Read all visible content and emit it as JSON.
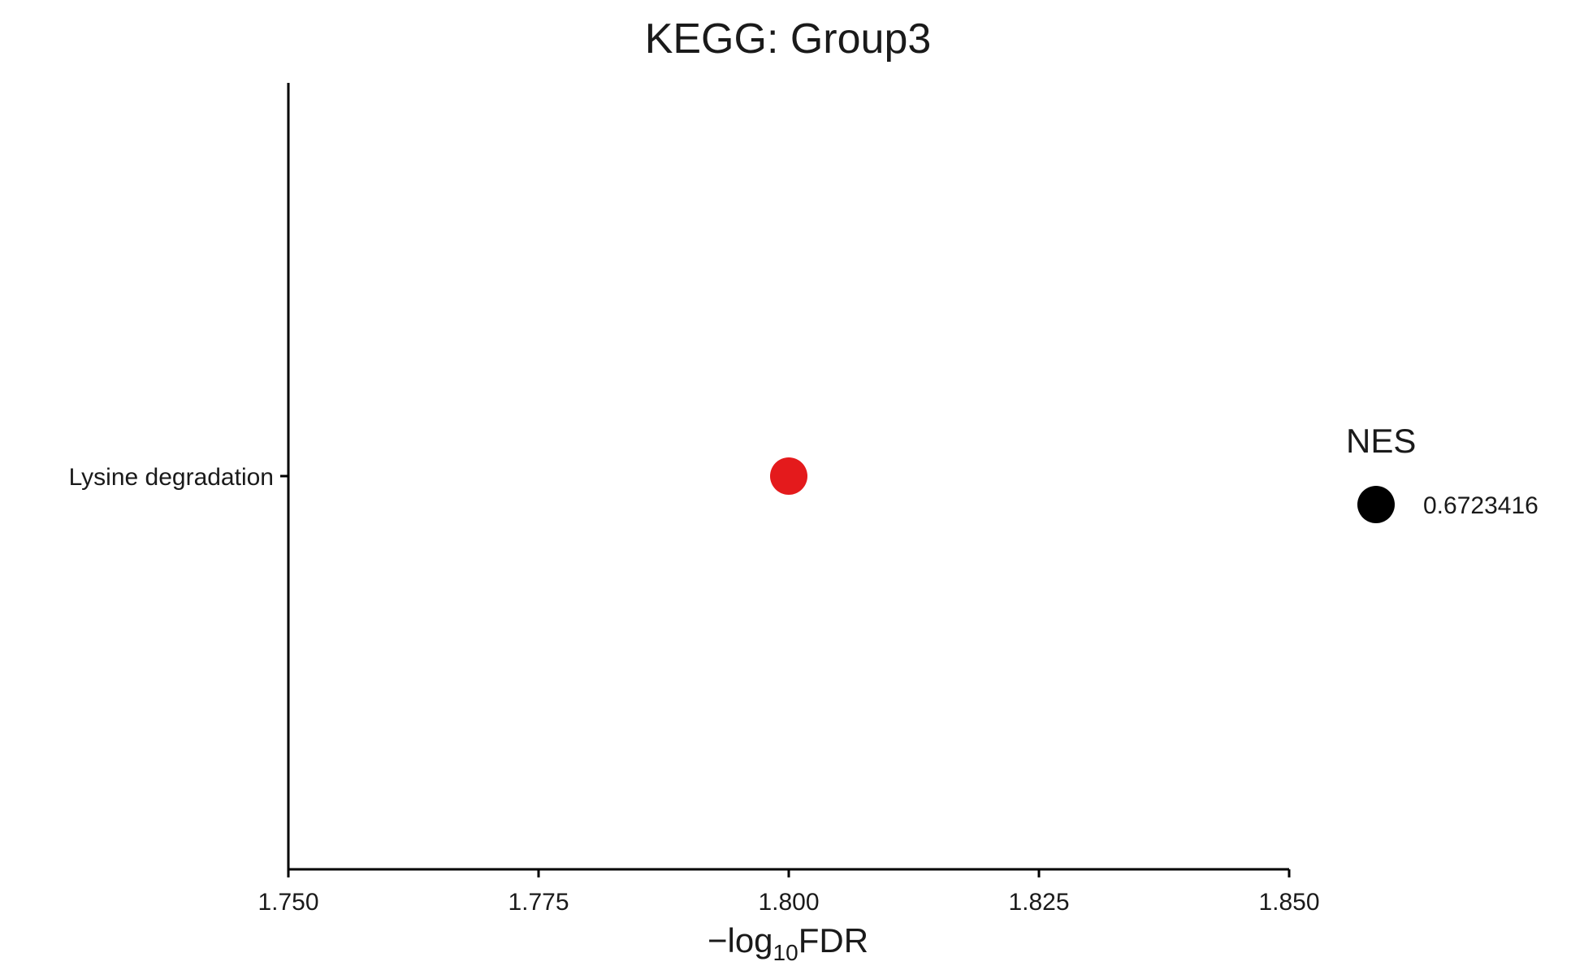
{
  "chart_data": {
    "type": "scatter",
    "title": "KEGG: Group3",
    "xlabel": {
      "prefix": "−log",
      "subscript": "10",
      "suffix": "FDR"
    },
    "ylabel": "",
    "xlim": [
      1.75,
      1.85
    ],
    "x_ticks": [
      1.75,
      1.775,
      1.8,
      1.825,
      1.85
    ],
    "x_tick_labels": [
      "1.750",
      "1.775",
      "1.800",
      "1.825",
      "1.850"
    ],
    "categories": [
      "Lysine degradation"
    ],
    "points": [
      {
        "category": "Lysine degradation",
        "x": 1.8,
        "nes": 0.6723416,
        "color": "#e41a1c"
      }
    ],
    "legend": {
      "title": "NES",
      "placement": "right",
      "entries": [
        {
          "label": "0.6723416",
          "color": "#000000"
        }
      ]
    },
    "grid": false
  }
}
